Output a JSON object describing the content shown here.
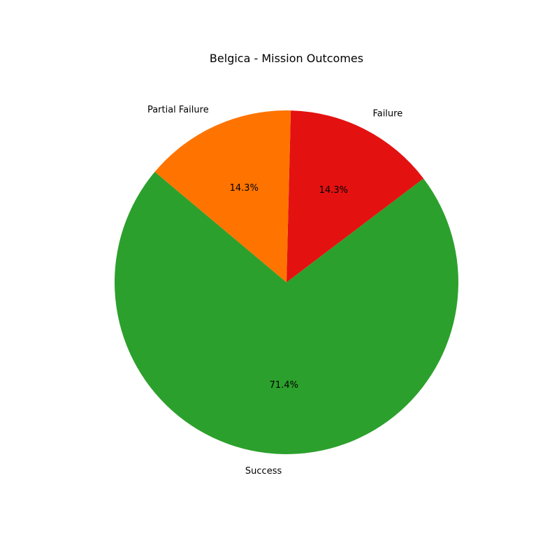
{
  "chart_data": {
    "type": "pie",
    "title": "Belgica - Mission Outcomes",
    "slices": [
      {
        "label": "Success",
        "value": 5,
        "pct_label": "71.4%",
        "color": "#2ca02c"
      },
      {
        "label": "Failure",
        "value": 1,
        "pct_label": "14.3%",
        "color": "#e41111"
      },
      {
        "label": "Partial Failure",
        "value": 1,
        "pct_label": "14.3%",
        "color": "#ff7400"
      }
    ],
    "start_angle_deg": 140,
    "direction": "counterclockwise",
    "legend": "none"
  }
}
